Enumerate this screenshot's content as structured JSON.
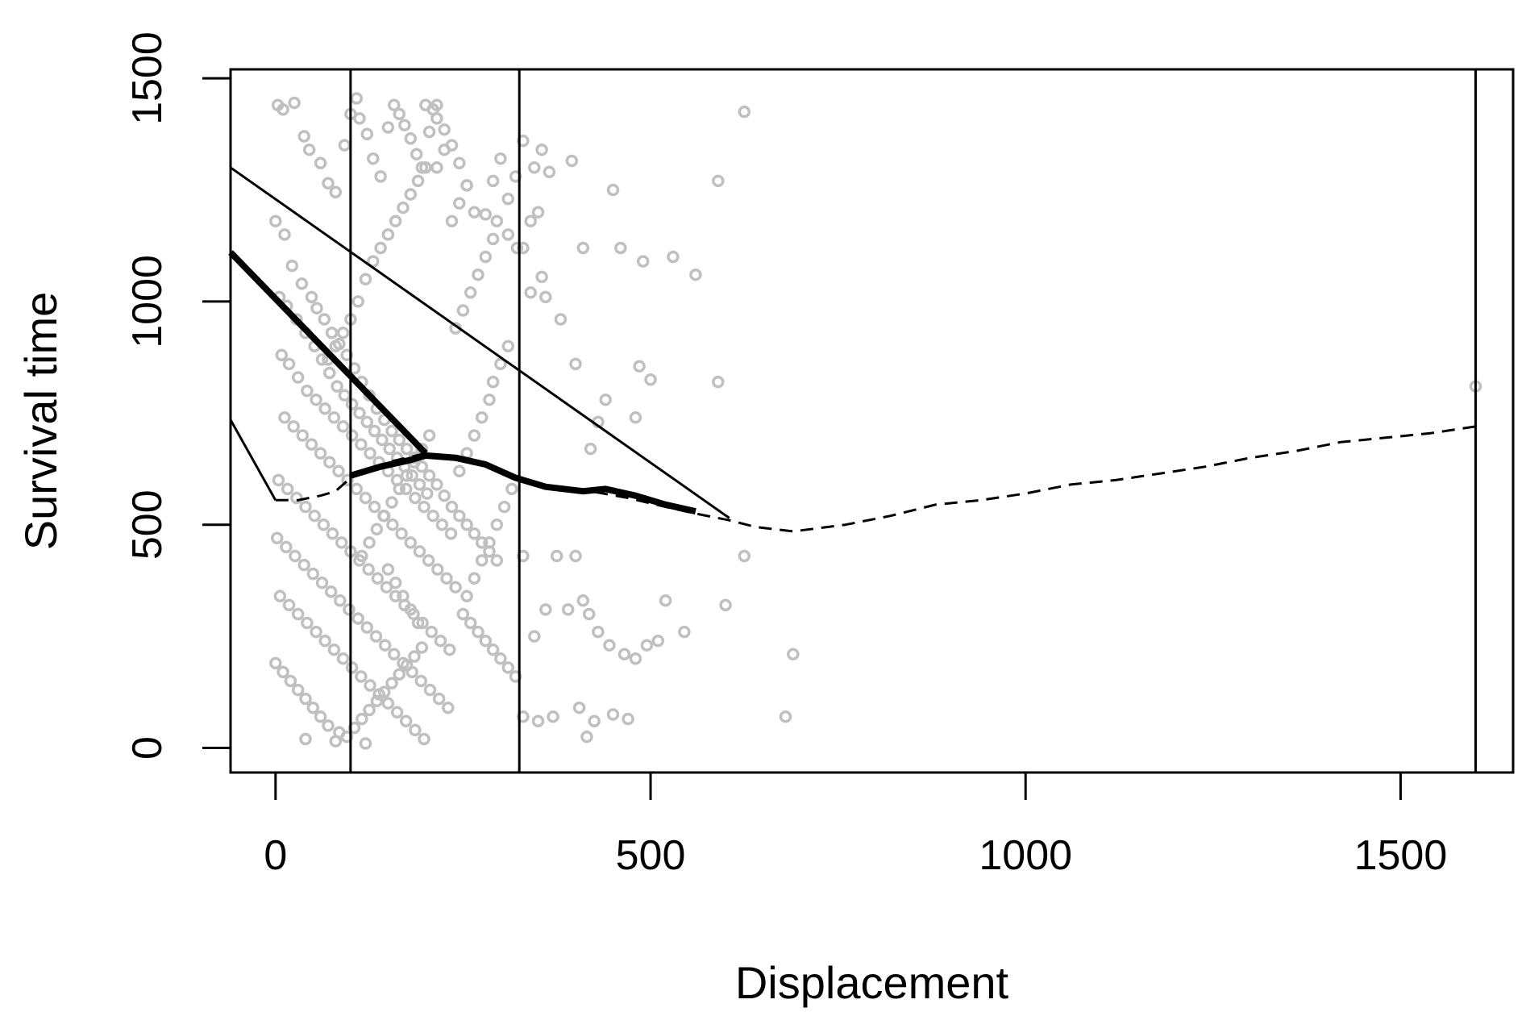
{
  "chart_data": {
    "type": "scatter",
    "xlabel": "Displacement",
    "ylabel": "Survival time",
    "xlim": [
      -60,
      1650
    ],
    "ylim": [
      -55,
      1520
    ],
    "xticks": [
      0,
      500,
      1000,
      1500
    ],
    "yticks": [
      0,
      500,
      1000,
      1500
    ],
    "xtick_labels": [
      "0",
      "500",
      "1000",
      "1500"
    ],
    "ytick_labels": [
      "0",
      "500",
      "1000",
      "1500"
    ],
    "grid": false,
    "legend": "none",
    "colors": {
      "points": "#c0c0c0",
      "lines": "#000000",
      "background": "#ffffff"
    },
    "vertical_lines": [
      100,
      325,
      1600
    ],
    "series": [
      {
        "kind": "line",
        "style": "solid-thin",
        "points": [
          [
            -60,
            1300
          ],
          [
            605,
            515
          ]
        ]
      },
      {
        "kind": "line",
        "style": "solid-thick",
        "points": [
          [
            -60,
            1110
          ],
          [
            200,
            660
          ]
        ]
      },
      {
        "kind": "line",
        "style": "solid-thin",
        "points": [
          [
            -60,
            735
          ],
          [
            0,
            555
          ]
        ]
      },
      {
        "kind": "line",
        "style": "dashed",
        "points": [
          [
            0,
            555
          ],
          [
            30,
            555
          ],
          [
            60,
            565
          ],
          [
            80,
            575
          ],
          [
            100,
            605
          ],
          [
            150,
            640
          ],
          [
            200,
            660
          ],
          [
            250,
            650
          ],
          [
            300,
            620
          ],
          [
            340,
            595
          ],
          [
            380,
            580
          ],
          [
            420,
            575
          ],
          [
            470,
            560
          ],
          [
            520,
            540
          ],
          [
            560,
            525
          ],
          [
            605,
            510
          ],
          [
            640,
            495
          ],
          [
            690,
            485
          ],
          [
            760,
            500
          ],
          [
            820,
            520
          ],
          [
            880,
            545
          ],
          [
            940,
            555
          ],
          [
            1000,
            570
          ],
          [
            1060,
            590
          ],
          [
            1120,
            600
          ],
          [
            1180,
            615
          ],
          [
            1240,
            630
          ],
          [
            1300,
            650
          ],
          [
            1360,
            665
          ],
          [
            1420,
            685
          ],
          [
            1480,
            695
          ],
          [
            1540,
            705
          ],
          [
            1600,
            720
          ]
        ]
      },
      {
        "kind": "line",
        "style": "solid-thick",
        "points": [
          [
            100,
            610
          ],
          [
            140,
            630
          ],
          [
            180,
            645
          ],
          [
            200,
            655
          ],
          [
            240,
            650
          ],
          [
            280,
            635
          ],
          [
            320,
            605
          ],
          [
            360,
            585
          ],
          [
            410,
            575
          ],
          [
            440,
            580
          ],
          [
            480,
            565
          ],
          [
            520,
            545
          ],
          [
            560,
            530
          ]
        ]
      }
    ],
    "points": [
      [
        3,
        1440
      ],
      [
        10,
        1430
      ],
      [
        25,
        1445
      ],
      [
        38,
        1370
      ],
      [
        45,
        1340
      ],
      [
        60,
        1310
      ],
      [
        70,
        1265
      ],
      [
        80,
        1245
      ],
      [
        92,
        1350
      ],
      [
        100,
        1420
      ],
      [
        108,
        1455
      ],
      [
        112,
        1410
      ],
      [
        122,
        1375
      ],
      [
        130,
        1320
      ],
      [
        140,
        1280
      ],
      [
        150,
        1390
      ],
      [
        158,
        1440
      ],
      [
        165,
        1420
      ],
      [
        172,
        1395
      ],
      [
        180,
        1365
      ],
      [
        188,
        1330
      ],
      [
        195,
        1300
      ],
      [
        200,
        1440
      ],
      [
        210,
        1430
      ],
      [
        215,
        1410
      ],
      [
        225,
        1385
      ],
      [
        235,
        1350
      ],
      [
        245,
        1310
      ],
      [
        255,
        1260
      ],
      [
        265,
        1200
      ],
      [
        280,
        1195
      ],
      [
        295,
        1180
      ],
      [
        310,
        1150
      ],
      [
        322,
        1120
      ],
      [
        355,
        1055
      ],
      [
        395,
        1315
      ],
      [
        410,
        1120
      ],
      [
        450,
        1250
      ],
      [
        460,
        1120
      ],
      [
        490,
        1090
      ],
      [
        530,
        1100
      ],
      [
        560,
        1060
      ],
      [
        590,
        1270
      ],
      [
        625,
        1425
      ],
      [
        485,
        855
      ],
      [
        500,
        825
      ],
      [
        590,
        820
      ],
      [
        480,
        740
      ],
      [
        215,
        1440
      ],
      [
        0,
        1180
      ],
      [
        12,
        1150
      ],
      [
        22,
        1080
      ],
      [
        35,
        1040
      ],
      [
        48,
        1010
      ],
      [
        55,
        985
      ],
      [
        65,
        960
      ],
      [
        75,
        930
      ],
      [
        85,
        905
      ],
      [
        95,
        880
      ],
      [
        105,
        850
      ],
      [
        115,
        820
      ],
      [
        125,
        790
      ],
      [
        135,
        760
      ],
      [
        145,
        735
      ],
      [
        155,
        710
      ],
      [
        165,
        690
      ],
      [
        175,
        670
      ],
      [
        185,
        650
      ],
      [
        195,
        630
      ],
      [
        205,
        610
      ],
      [
        215,
        590
      ],
      [
        225,
        565
      ],
      [
        235,
        540
      ],
      [
        245,
        520
      ],
      [
        255,
        500
      ],
      [
        265,
        480
      ],
      [
        275,
        460
      ],
      [
        285,
        440
      ],
      [
        295,
        420
      ],
      [
        5,
        1010
      ],
      [
        15,
        990
      ],
      [
        28,
        960
      ],
      [
        40,
        930
      ],
      [
        52,
        900
      ],
      [
        62,
        870
      ],
      [
        72,
        840
      ],
      [
        82,
        810
      ],
      [
        92,
        790
      ],
      [
        102,
        770
      ],
      [
        112,
        750
      ],
      [
        122,
        730
      ],
      [
        132,
        710
      ],
      [
        142,
        690
      ],
      [
        152,
        670
      ],
      [
        162,
        650
      ],
      [
        172,
        630
      ],
      [
        182,
        610
      ],
      [
        192,
        590
      ],
      [
        202,
        570
      ],
      [
        8,
        880
      ],
      [
        18,
        860
      ],
      [
        30,
        830
      ],
      [
        42,
        800
      ],
      [
        54,
        780
      ],
      [
        66,
        760
      ],
      [
        78,
        740
      ],
      [
        90,
        720
      ],
      [
        102,
        700
      ],
      [
        114,
        680
      ],
      [
        126,
        660
      ],
      [
        138,
        640
      ],
      [
        150,
        620
      ],
      [
        162,
        600
      ],
      [
        174,
        580
      ],
      [
        186,
        560
      ],
      [
        198,
        540
      ],
      [
        210,
        520
      ],
      [
        222,
        500
      ],
      [
        234,
        480
      ],
      [
        12,
        740
      ],
      [
        24,
        720
      ],
      [
        36,
        700
      ],
      [
        48,
        680
      ],
      [
        60,
        660
      ],
      [
        72,
        640
      ],
      [
        84,
        620
      ],
      [
        96,
        600
      ],
      [
        108,
        580
      ],
      [
        120,
        560
      ],
      [
        132,
        540
      ],
      [
        144,
        520
      ],
      [
        156,
        500
      ],
      [
        168,
        480
      ],
      [
        180,
        460
      ],
      [
        192,
        440
      ],
      [
        204,
        420
      ],
      [
        216,
        400
      ],
      [
        228,
        380
      ],
      [
        240,
        360
      ],
      [
        4,
        600
      ],
      [
        16,
        580
      ],
      [
        28,
        560
      ],
      [
        40,
        540
      ],
      [
        52,
        520
      ],
      [
        64,
        500
      ],
      [
        76,
        480
      ],
      [
        88,
        460
      ],
      [
        100,
        440
      ],
      [
        112,
        420
      ],
      [
        124,
        400
      ],
      [
        136,
        380
      ],
      [
        148,
        360
      ],
      [
        160,
        340
      ],
      [
        172,
        320
      ],
      [
        184,
        300
      ],
      [
        196,
        280
      ],
      [
        208,
        260
      ],
      [
        220,
        240
      ],
      [
        232,
        220
      ],
      [
        2,
        470
      ],
      [
        14,
        450
      ],
      [
        26,
        430
      ],
      [
        38,
        410
      ],
      [
        50,
        390
      ],
      [
        62,
        370
      ],
      [
        74,
        350
      ],
      [
        86,
        330
      ],
      [
        98,
        310
      ],
      [
        110,
        290
      ],
      [
        122,
        270
      ],
      [
        134,
        250
      ],
      [
        146,
        230
      ],
      [
        158,
        210
      ],
      [
        170,
        190
      ],
      [
        182,
        170
      ],
      [
        194,
        150
      ],
      [
        206,
        130
      ],
      [
        218,
        110
      ],
      [
        230,
        90
      ],
      [
        6,
        340
      ],
      [
        18,
        320
      ],
      [
        30,
        300
      ],
      [
        42,
        280
      ],
      [
        54,
        260
      ],
      [
        66,
        240
      ],
      [
        78,
        220
      ],
      [
        90,
        200
      ],
      [
        102,
        180
      ],
      [
        114,
        160
      ],
      [
        126,
        140
      ],
      [
        138,
        120
      ],
      [
        150,
        100
      ],
      [
        162,
        80
      ],
      [
        174,
        60
      ],
      [
        186,
        40
      ],
      [
        198,
        20
      ],
      [
        120,
        10
      ],
      [
        80,
        15
      ],
      [
        40,
        20
      ],
      [
        0,
        190
      ],
      [
        10,
        170
      ],
      [
        20,
        150
      ],
      [
        30,
        130
      ],
      [
        40,
        110
      ],
      [
        50,
        90
      ],
      [
        60,
        70
      ],
      [
        70,
        50
      ],
      [
        85,
        35
      ],
      [
        95,
        25
      ],
      [
        105,
        45
      ],
      [
        115,
        65
      ],
      [
        125,
        85
      ],
      [
        135,
        105
      ],
      [
        145,
        125
      ],
      [
        155,
        145
      ],
      [
        165,
        165
      ],
      [
        175,
        185
      ],
      [
        185,
        205
      ],
      [
        195,
        225
      ],
      [
        250,
        300
      ],
      [
        260,
        280
      ],
      [
        270,
        260
      ],
      [
        280,
        240
      ],
      [
        290,
        220
      ],
      [
        300,
        200
      ],
      [
        310,
        180
      ],
      [
        320,
        160
      ],
      [
        255,
        340
      ],
      [
        265,
        380
      ],
      [
        275,
        420
      ],
      [
        285,
        460
      ],
      [
        295,
        500
      ],
      [
        305,
        540
      ],
      [
        315,
        580
      ],
      [
        245,
        620
      ],
      [
        255,
        660
      ],
      [
        265,
        700
      ],
      [
        275,
        740
      ],
      [
        285,
        780
      ],
      [
        290,
        820
      ],
      [
        300,
        860
      ],
      [
        310,
        900
      ],
      [
        240,
        940
      ],
      [
        250,
        980
      ],
      [
        260,
        1020
      ],
      [
        270,
        1060
      ],
      [
        280,
        1100
      ],
      [
        290,
        1140
      ],
      [
        235,
        1180
      ],
      [
        245,
        1220
      ],
      [
        255,
        1260
      ],
      [
        215,
        1300
      ],
      [
        225,
        1340
      ],
      [
        205,
        1380
      ],
      [
        330,
        430
      ],
      [
        345,
        250
      ],
      [
        360,
        310
      ],
      [
        375,
        430
      ],
      [
        390,
        310
      ],
      [
        400,
        430
      ],
      [
        410,
        330
      ],
      [
        418,
        300
      ],
      [
        430,
        260
      ],
      [
        445,
        230
      ],
      [
        465,
        210
      ],
      [
        480,
        200
      ],
      [
        495,
        230
      ],
      [
        510,
        240
      ],
      [
        520,
        330
      ],
      [
        545,
        260
      ],
      [
        600,
        320
      ],
      [
        625,
        430
      ],
      [
        680,
        70
      ],
      [
        690,
        210
      ],
      [
        330,
        70
      ],
      [
        350,
        60
      ],
      [
        370,
        70
      ],
      [
        405,
        90
      ],
      [
        415,
        25
      ],
      [
        425,
        60
      ],
      [
        450,
        75
      ],
      [
        470,
        65
      ],
      [
        420,
        670
      ],
      [
        430,
        730
      ],
      [
        440,
        780
      ],
      [
        400,
        860
      ],
      [
        380,
        960
      ],
      [
        360,
        1010
      ],
      [
        340,
        1020
      ],
      [
        330,
        1120
      ],
      [
        340,
        1180
      ],
      [
        350,
        1200
      ],
      [
        320,
        1280
      ],
      [
        310,
        1230
      ],
      [
        330,
        1360
      ],
      [
        345,
        1300
      ],
      [
        355,
        1340
      ],
      [
        365,
        1290
      ],
      [
        300,
        1320
      ],
      [
        290,
        1270
      ],
      [
        110,
        1000
      ],
      [
        120,
        1050
      ],
      [
        130,
        1090
      ],
      [
        140,
        1120
      ],
      [
        150,
        1150
      ],
      [
        160,
        1180
      ],
      [
        170,
        1210
      ],
      [
        180,
        1240
      ],
      [
        190,
        1270
      ],
      [
        200,
        1300
      ],
      [
        100,
        960
      ],
      [
        90,
        930
      ],
      [
        80,
        900
      ],
      [
        70,
        870
      ],
      [
        115,
        430
      ],
      [
        125,
        460
      ],
      [
        135,
        490
      ],
      [
        145,
        520
      ],
      [
        155,
        550
      ],
      [
        165,
        580
      ],
      [
        175,
        610
      ],
      [
        185,
        640
      ],
      [
        195,
        670
      ],
      [
        205,
        700
      ],
      [
        150,
        400
      ],
      [
        160,
        370
      ],
      [
        170,
        340
      ],
      [
        180,
        310
      ],
      [
        190,
        280
      ],
      [
        1600,
        810
      ]
    ]
  }
}
